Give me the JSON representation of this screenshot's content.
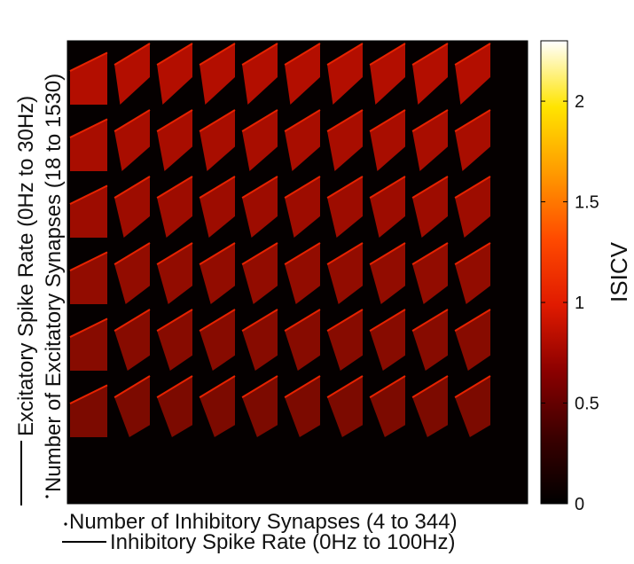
{
  "chart_data": {
    "type": "heatmap",
    "description_grid": "6 rows x 10 columns of heatmap tiles",
    "grid": {
      "rows": 6,
      "cols": 10
    },
    "x_axis": {
      "labels": [
        "Number of Inhibitory Synapses (4 to 344)",
        "Inhibitory Spike Rate (0Hz to 100Hz)"
      ],
      "synapses_range": [
        4,
        344
      ],
      "rate_range_hz": [
        0,
        100
      ]
    },
    "y_axis": {
      "labels": [
        "Excitatory Spike Rate (0Hz to 30Hz)",
        "Number of Excitatory Synapses (18 to 1530)"
      ],
      "rate_range_hz": [
        0,
        30
      ],
      "synapses_range": [
        18,
        1530
      ]
    },
    "colorbar": {
      "label": "ISICV",
      "range": [
        0,
        2.3
      ],
      "ticks": [
        {
          "value": 0,
          "label": "0"
        },
        {
          "value": 0.5,
          "label": "0.5"
        },
        {
          "value": 1,
          "label": "1"
        },
        {
          "value": 1.5,
          "label": "1.5"
        },
        {
          "value": 2,
          "label": "2"
        }
      ],
      "colormap": [
        "#000000",
        "#3a0000",
        "#8b0000",
        "#e01a00",
        "#ff4a00",
        "#ff9a00",
        "#ffe400",
        "#ffffff"
      ]
    },
    "tile_value_typical": 0.85
  }
}
